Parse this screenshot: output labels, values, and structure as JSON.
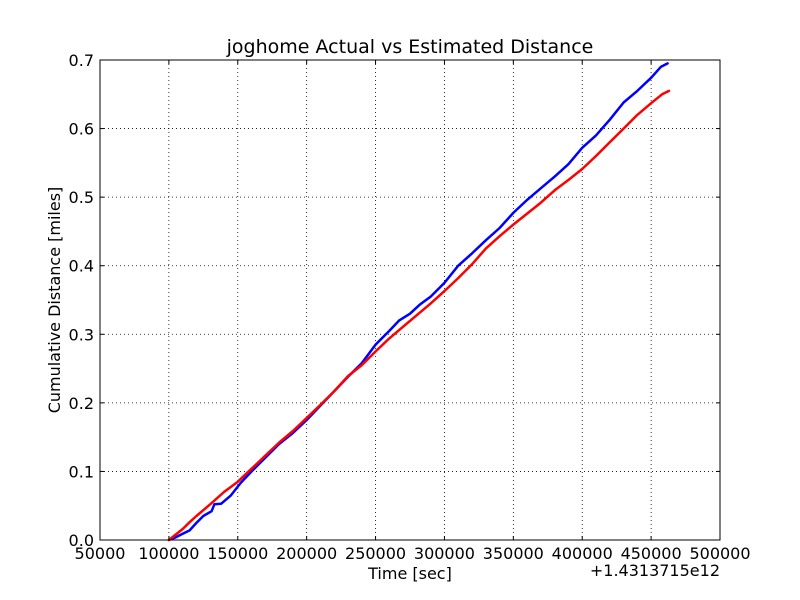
{
  "chart_data": {
    "type": "line",
    "title": "joghome Actual vs Estimated Distance",
    "xlabel": "Time [sec]",
    "ylabel": "Cumulative Distance [miles]",
    "x_offset_label": "+1.4313715e12",
    "xlim": [
      50000,
      500000
    ],
    "ylim": [
      0,
      0.7
    ],
    "x_ticks": [
      50000,
      100000,
      150000,
      200000,
      250000,
      300000,
      350000,
      400000,
      450000,
      500000
    ],
    "y_ticks": [
      0.0,
      0.1,
      0.2,
      0.3,
      0.4,
      0.5,
      0.6,
      0.7
    ],
    "x_tick_labels": [
      "50000",
      "100000",
      "150000",
      "200000",
      "250000",
      "300000",
      "350000",
      "400000",
      "450000",
      "500000"
    ],
    "y_tick_labels": [
      "0.0",
      "0.1",
      "0.2",
      "0.3",
      "0.4",
      "0.5",
      "0.6",
      "0.7"
    ],
    "grid": true,
    "series": [
      {
        "color": "#0000ff",
        "points": [
          [
            100000,
            0.0
          ],
          [
            105000,
            0.004
          ],
          [
            110000,
            0.009
          ],
          [
            115000,
            0.014
          ],
          [
            120000,
            0.025
          ],
          [
            125000,
            0.035
          ],
          [
            131000,
            0.042
          ],
          [
            133000,
            0.052
          ],
          [
            138000,
            0.053
          ],
          [
            145000,
            0.065
          ],
          [
            152000,
            0.083
          ],
          [
            160000,
            0.1
          ],
          [
            170000,
            0.12
          ],
          [
            180000,
            0.14
          ],
          [
            190000,
            0.156
          ],
          [
            200000,
            0.175
          ],
          [
            210000,
            0.196
          ],
          [
            220000,
            0.217
          ],
          [
            230000,
            0.238
          ],
          [
            240000,
            0.258
          ],
          [
            250000,
            0.285
          ],
          [
            260000,
            0.305
          ],
          [
            267000,
            0.32
          ],
          [
            275000,
            0.33
          ],
          [
            282000,
            0.343
          ],
          [
            290000,
            0.355
          ],
          [
            300000,
            0.375
          ],
          [
            310000,
            0.4
          ],
          [
            320000,
            0.418
          ],
          [
            330000,
            0.437
          ],
          [
            340000,
            0.455
          ],
          [
            350000,
            0.477
          ],
          [
            360000,
            0.496
          ],
          [
            370000,
            0.513
          ],
          [
            380000,
            0.53
          ],
          [
            390000,
            0.548
          ],
          [
            400000,
            0.572
          ],
          [
            410000,
            0.59
          ],
          [
            420000,
            0.613
          ],
          [
            430000,
            0.638
          ],
          [
            440000,
            0.655
          ],
          [
            450000,
            0.674
          ],
          [
            457000,
            0.69
          ],
          [
            462000,
            0.695
          ]
        ]
      },
      {
        "color": "#ff0000",
        "points": [
          [
            100000,
            0.0
          ],
          [
            105000,
            0.008
          ],
          [
            110000,
            0.016
          ],
          [
            115000,
            0.026
          ],
          [
            120000,
            0.035
          ],
          [
            130000,
            0.052
          ],
          [
            140000,
            0.07
          ],
          [
            150000,
            0.085
          ],
          [
            160000,
            0.104
          ],
          [
            170000,
            0.123
          ],
          [
            180000,
            0.142
          ],
          [
            190000,
            0.159
          ],
          [
            200000,
            0.178
          ],
          [
            210000,
            0.197
          ],
          [
            220000,
            0.217
          ],
          [
            230000,
            0.239
          ],
          [
            240000,
            0.255
          ],
          [
            250000,
            0.275
          ],
          [
            260000,
            0.294
          ],
          [
            270000,
            0.311
          ],
          [
            280000,
            0.328
          ],
          [
            290000,
            0.345
          ],
          [
            300000,
            0.363
          ],
          [
            310000,
            0.382
          ],
          [
            320000,
            0.402
          ],
          [
            330000,
            0.425
          ],
          [
            340000,
            0.443
          ],
          [
            350000,
            0.46
          ],
          [
            360000,
            0.476
          ],
          [
            370000,
            0.492
          ],
          [
            380000,
            0.51
          ],
          [
            390000,
            0.525
          ],
          [
            400000,
            0.541
          ],
          [
            410000,
            0.56
          ],
          [
            420000,
            0.58
          ],
          [
            430000,
            0.6
          ],
          [
            440000,
            0.62
          ],
          [
            450000,
            0.637
          ],
          [
            458000,
            0.65
          ],
          [
            463000,
            0.655
          ]
        ]
      }
    ]
  }
}
